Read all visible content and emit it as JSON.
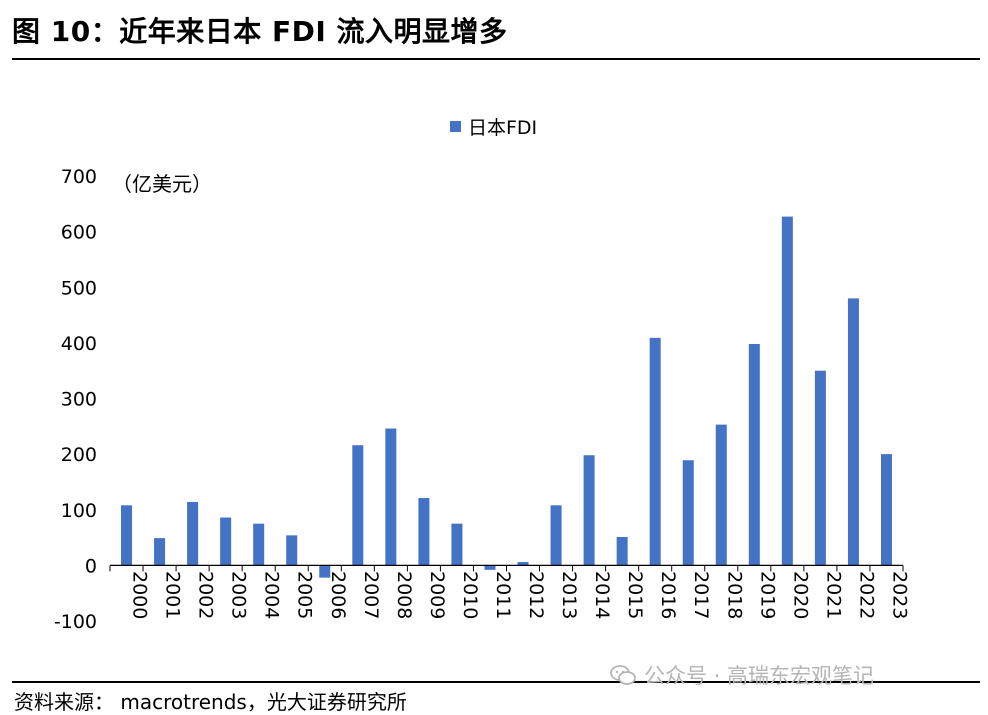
{
  "header": {
    "title": "图 10：近年来日本 FDI 流入明显增多"
  },
  "footer": {
    "source": "资料来源：   macrotrends，光大证券研究所"
  },
  "watermark": {
    "text": "公众号 · 高瑞东宏观笔记",
    "icon": "wechat-icon"
  },
  "chart_data": {
    "type": "bar",
    "title": "",
    "unit_label": "（亿美元）",
    "categories": [
      "2000",
      "2001",
      "2002",
      "2003",
      "2004",
      "2005",
      "2006",
      "2007",
      "2008",
      "2009",
      "2010",
      "2011",
      "2012",
      "2013",
      "2014",
      "2015",
      "2016",
      "2017",
      "2018",
      "2019",
      "2020",
      "2021",
      "2022",
      "2023"
    ],
    "series": [
      {
        "name": "日本FDI",
        "color": "#4472C4",
        "values": [
          108,
          49,
          114,
          86,
          75,
          54,
          -22,
          216,
          246,
          121,
          75,
          -8,
          6,
          108,
          198,
          51,
          409,
          189,
          253,
          398,
          627,
          350,
          480,
          200
        ]
      }
    ],
    "ylim": [
      -100,
      700
    ],
    "yticks": [
      -100,
      0,
      100,
      200,
      300,
      400,
      500,
      600,
      700
    ],
    "legend_position": "top-center",
    "grid": false,
    "xlabel": "",
    "ylabel": ""
  }
}
